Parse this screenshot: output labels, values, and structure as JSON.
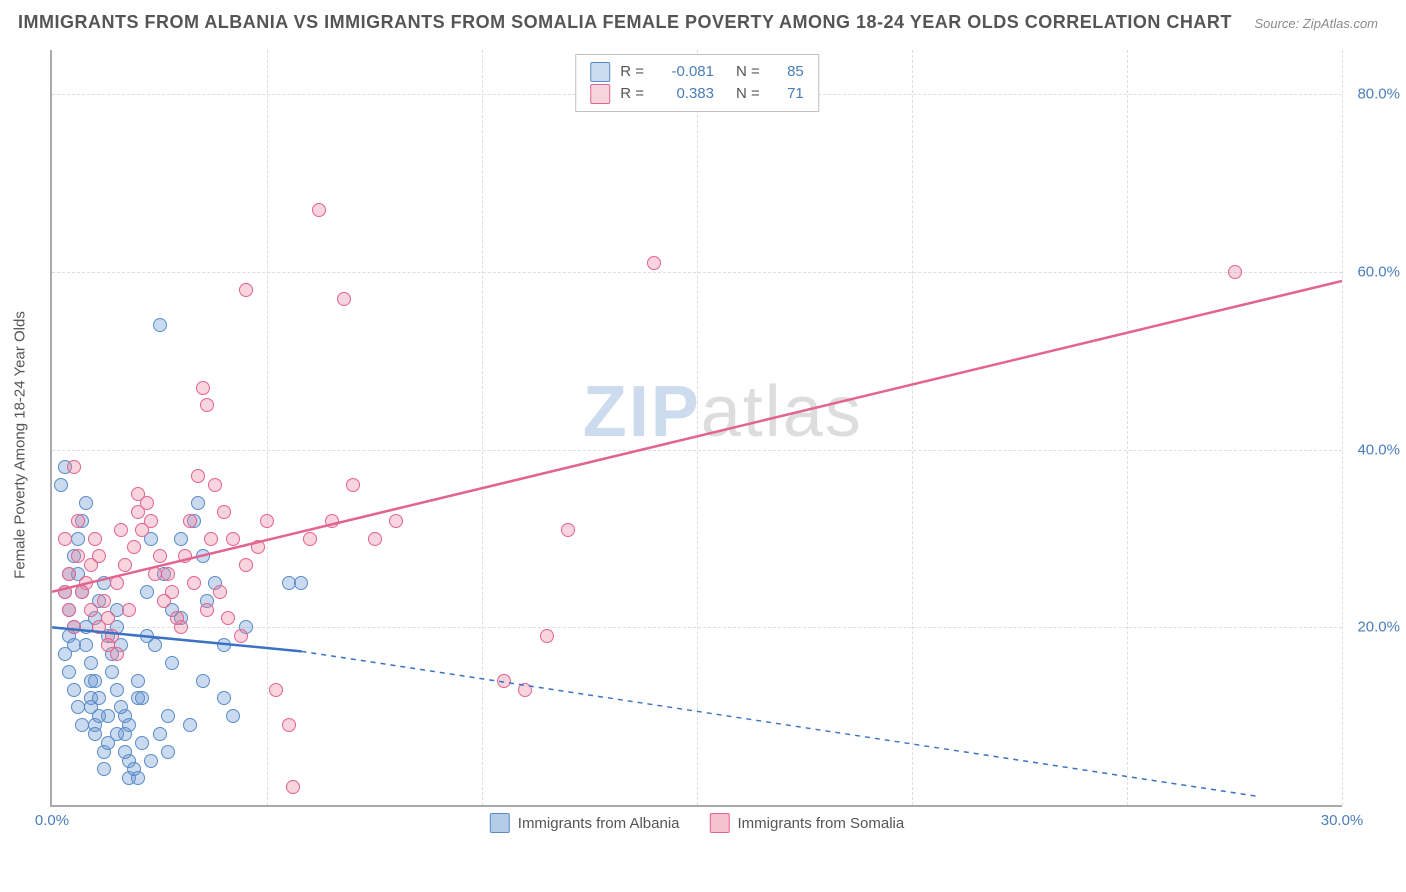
{
  "title": "IMMIGRANTS FROM ALBANIA VS IMMIGRANTS FROM SOMALIA FEMALE POVERTY AMONG 18-24 YEAR OLDS CORRELATION CHART",
  "source": "Source: ZipAtlas.com",
  "ylabel": "Female Poverty Among 18-24 Year Olds",
  "watermark_zip": "ZIP",
  "watermark_atlas": "atlas",
  "chart": {
    "type": "scatter",
    "xlim": [
      0,
      30
    ],
    "ylim": [
      0,
      85
    ],
    "xticks": [
      0,
      30
    ],
    "xtick_labels": [
      "0.0%",
      "30.0%"
    ],
    "yticks": [
      20,
      40,
      60,
      80
    ],
    "ytick_labels": [
      "20.0%",
      "40.0%",
      "60.0%",
      "80.0%"
    ],
    "background_color": "#ffffff",
    "grid_color": "#dddddd",
    "x_grid_positions": [
      5,
      10,
      15,
      20,
      25,
      30
    ],
    "series": [
      {
        "name": "Immigrants from Albania",
        "fill": "rgba(106,153,208,0.35)",
        "stroke": "#5a8bc9",
        "line_color": "#3b72c4",
        "line_dash": "4 4",
        "R": "-0.081",
        "N": "85",
        "trend": {
          "x1": 0,
          "y1": 20,
          "x2": 5.8,
          "y2": 17.3,
          "x2_dash": 28,
          "y2_dash": 1
        },
        "points": [
          [
            0.3,
            38
          ],
          [
            0.2,
            36
          ],
          [
            0.4,
            22
          ],
          [
            0.4,
            19
          ],
          [
            0.5,
            18
          ],
          [
            0.3,
            17
          ],
          [
            0.8,
            20
          ],
          [
            0.6,
            26
          ],
          [
            0.7,
            24
          ],
          [
            0.9,
            14
          ],
          [
            0.9,
            12
          ],
          [
            0.9,
            11
          ],
          [
            1.0,
            9
          ],
          [
            1.0,
            8
          ],
          [
            1.1,
            10
          ],
          [
            1.2,
            6
          ],
          [
            1.2,
            4
          ],
          [
            1.3,
            7
          ],
          [
            1.4,
            15
          ],
          [
            1.5,
            20
          ],
          [
            1.5,
            22
          ],
          [
            1.6,
            18
          ],
          [
            1.7,
            8
          ],
          [
            1.7,
            10
          ],
          [
            1.8,
            3
          ],
          [
            1.8,
            5
          ],
          [
            2.0,
            3
          ],
          [
            2.0,
            12
          ],
          [
            2.0,
            14
          ],
          [
            2.2,
            19
          ],
          [
            2.2,
            24
          ],
          [
            2.3,
            30
          ],
          [
            2.5,
            54
          ],
          [
            2.6,
            26
          ],
          [
            2.7,
            10
          ],
          [
            2.8,
            16
          ],
          [
            3.0,
            21
          ],
          [
            3.0,
            30
          ],
          [
            3.2,
            9
          ],
          [
            3.3,
            32
          ],
          [
            3.4,
            34
          ],
          [
            3.5,
            14
          ],
          [
            3.6,
            23
          ],
          [
            3.8,
            25
          ],
          [
            4.0,
            18
          ],
          [
            4.2,
            10
          ],
          [
            4.5,
            20
          ],
          [
            5.5,
            25
          ],
          [
            5.8,
            25
          ],
          [
            0.5,
            28
          ],
          [
            0.6,
            30
          ],
          [
            0.7,
            32
          ],
          [
            0.8,
            34
          ],
          [
            1.0,
            21
          ],
          [
            1.1,
            23
          ],
          [
            1.2,
            25
          ],
          [
            1.3,
            19
          ],
          [
            1.4,
            17
          ],
          [
            1.5,
            13
          ],
          [
            1.6,
            11
          ],
          [
            1.8,
            9
          ],
          [
            2.1,
            7
          ],
          [
            2.3,
            5
          ],
          [
            2.5,
            8
          ],
          [
            2.7,
            6
          ],
          [
            0.4,
            15
          ],
          [
            0.5,
            13
          ],
          [
            0.6,
            11
          ],
          [
            0.7,
            9
          ],
          [
            0.3,
            24
          ],
          [
            0.4,
            26
          ],
          [
            0.5,
            20
          ],
          [
            0.8,
            18
          ],
          [
            0.9,
            16
          ],
          [
            1.0,
            14
          ],
          [
            1.1,
            12
          ],
          [
            1.3,
            10
          ],
          [
            1.5,
            8
          ],
          [
            1.7,
            6
          ],
          [
            1.9,
            4
          ],
          [
            2.1,
            12
          ],
          [
            2.4,
            18
          ],
          [
            2.8,
            22
          ],
          [
            3.5,
            28
          ],
          [
            4.0,
            12
          ]
        ]
      },
      {
        "name": "Immigrants from Somalia",
        "fill": "rgba(236,131,161,0.35)",
        "stroke": "#e2648f",
        "line_color": "#e2648f",
        "line_dash": "",
        "R": "0.383",
        "N": "71",
        "trend": {
          "x1": 0,
          "y1": 24,
          "x2": 30,
          "y2": 59
        },
        "points": [
          [
            0.3,
            24
          ],
          [
            0.3,
            30
          ],
          [
            0.4,
            26
          ],
          [
            0.5,
            38
          ],
          [
            0.6,
            28
          ],
          [
            0.6,
            32
          ],
          [
            0.8,
            25
          ],
          [
            0.9,
            27
          ],
          [
            1.0,
            30
          ],
          [
            1.1,
            28
          ],
          [
            1.2,
            23
          ],
          [
            1.3,
            21
          ],
          [
            1.4,
            19
          ],
          [
            1.5,
            17
          ],
          [
            1.6,
            31
          ],
          [
            1.8,
            22
          ],
          [
            2.0,
            33
          ],
          [
            2.0,
            35
          ],
          [
            2.2,
            34
          ],
          [
            2.3,
            32
          ],
          [
            2.5,
            28
          ],
          [
            2.7,
            26
          ],
          [
            2.8,
            24
          ],
          [
            3.0,
            20
          ],
          [
            3.2,
            32
          ],
          [
            3.4,
            37
          ],
          [
            3.5,
            47
          ],
          [
            3.6,
            45
          ],
          [
            3.7,
            30
          ],
          [
            3.8,
            36
          ],
          [
            4.0,
            33
          ],
          [
            4.2,
            30
          ],
          [
            4.5,
            27
          ],
          [
            4.5,
            58
          ],
          [
            4.8,
            29
          ],
          [
            5.0,
            32
          ],
          [
            5.2,
            13
          ],
          [
            5.5,
            9
          ],
          [
            5.6,
            2
          ],
          [
            6.0,
            30
          ],
          [
            6.2,
            67
          ],
          [
            6.5,
            32
          ],
          [
            6.8,
            57
          ],
          [
            7.0,
            36
          ],
          [
            7.5,
            30
          ],
          [
            8.0,
            32
          ],
          [
            10.5,
            14
          ],
          [
            11.0,
            13
          ],
          [
            11.5,
            19
          ],
          [
            12.0,
            31
          ],
          [
            14.0,
            61
          ],
          [
            27.5,
            60
          ],
          [
            0.4,
            22
          ],
          [
            0.5,
            20
          ],
          [
            0.7,
            24
          ],
          [
            0.9,
            22
          ],
          [
            1.1,
            20
          ],
          [
            1.3,
            18
          ],
          [
            1.5,
            25
          ],
          [
            1.7,
            27
          ],
          [
            1.9,
            29
          ],
          [
            2.1,
            31
          ],
          [
            2.4,
            26
          ],
          [
            2.6,
            23
          ],
          [
            2.9,
            21
          ],
          [
            3.1,
            28
          ],
          [
            3.3,
            25
          ],
          [
            3.6,
            22
          ],
          [
            3.9,
            24
          ],
          [
            4.1,
            21
          ],
          [
            4.4,
            19
          ]
        ]
      }
    ]
  },
  "legend_bottom": [
    {
      "swatch_fill": "rgba(106,153,208,0.5)",
      "swatch_stroke": "#5a8bc9",
      "label": "Immigrants from Albania"
    },
    {
      "swatch_fill": "rgba(236,131,161,0.5)",
      "swatch_stroke": "#e2648f",
      "label": "Immigrants from Somalia"
    }
  ]
}
